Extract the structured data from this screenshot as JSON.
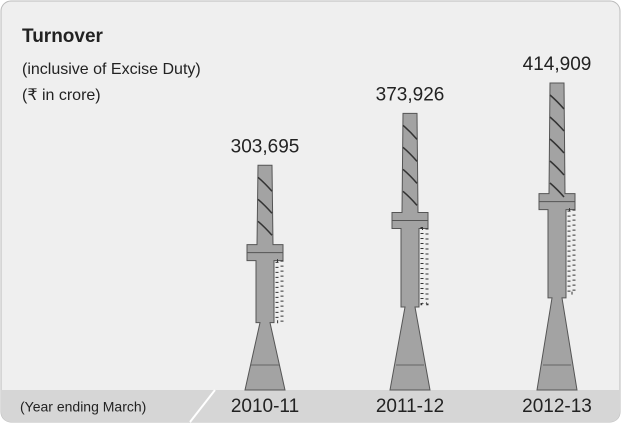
{
  "chart_data": {
    "type": "bar",
    "title": "Turnover",
    "subtitle": [
      "(inclusive of Excise Duty)",
      "(₹ in crore)"
    ],
    "x_note": "(Year ending March)",
    "categories": [
      "2010-11",
      "2011-12",
      "2012-13"
    ],
    "values": [
      303695,
      373926,
      414909
    ],
    "value_labels": [
      "303,695",
      "373,926",
      "414,909"
    ],
    "color": "#a3a3a3"
  }
}
